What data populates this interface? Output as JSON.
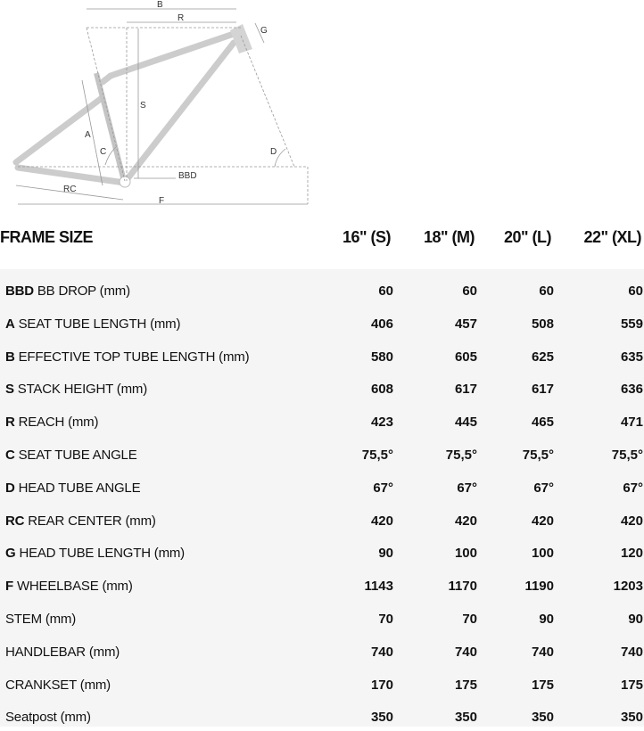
{
  "diagram": {
    "labels": [
      "B",
      "R",
      "G",
      "S",
      "A",
      "C",
      "D",
      "BBD",
      "RC",
      "F"
    ]
  },
  "header": {
    "title": "FRAME SIZE",
    "sizes": [
      "16\" (S)",
      "18\" (M)",
      "20\" (L)",
      "22\" (XL)"
    ]
  },
  "rows": [
    {
      "code": "BBD",
      "label": "BB DROP (mm)",
      "values": [
        "60",
        "60",
        "60",
        "60"
      ]
    },
    {
      "code": "A",
      "label": "SEAT TUBE LENGTH (mm)",
      "values": [
        "406",
        "457",
        "508",
        "559"
      ]
    },
    {
      "code": "B",
      "label": "EFFECTIVE TOP TUBE LENGTH (mm)",
      "values": [
        "580",
        "605",
        "625",
        "635"
      ]
    },
    {
      "code": "S",
      "label": "STACK HEIGHT (mm)",
      "values": [
        "608",
        "617",
        "617",
        "636"
      ]
    },
    {
      "code": "R",
      "label": "REACH (mm)",
      "values": [
        "423",
        "445",
        "465",
        "471"
      ]
    },
    {
      "code": "C",
      "label": "SEAT TUBE ANGLE",
      "values": [
        "75,5°",
        "75,5°",
        "75,5°",
        "75,5°"
      ]
    },
    {
      "code": "D",
      "label": "HEAD TUBE ANGLE",
      "values": [
        "67°",
        "67°",
        "67°",
        "67°"
      ]
    },
    {
      "code": "RC",
      "label": "REAR CENTER (mm)",
      "values": [
        "420",
        "420",
        "420",
        "420"
      ]
    },
    {
      "code": "G",
      "label": "HEAD TUBE LENGTH (mm)",
      "values": [
        "90",
        "100",
        "100",
        "120"
      ]
    },
    {
      "code": "F",
      "label": "WHEELBASE (mm)",
      "values": [
        "1143",
        "1170",
        "1190",
        "1203"
      ]
    },
    {
      "code": "",
      "label": "STEM (mm)",
      "values": [
        "70",
        "70",
        "90",
        "90"
      ]
    },
    {
      "code": "",
      "label": "HANDLEBAR (mm)",
      "values": [
        "740",
        "740",
        "740",
        "740"
      ]
    },
    {
      "code": "",
      "label": "CRANKSET (mm)",
      "values": [
        "170",
        "175",
        "175",
        "175"
      ]
    },
    {
      "code": "",
      "label": "Seatpost (mm)",
      "values": [
        "350",
        "350",
        "350",
        "350"
      ]
    }
  ]
}
